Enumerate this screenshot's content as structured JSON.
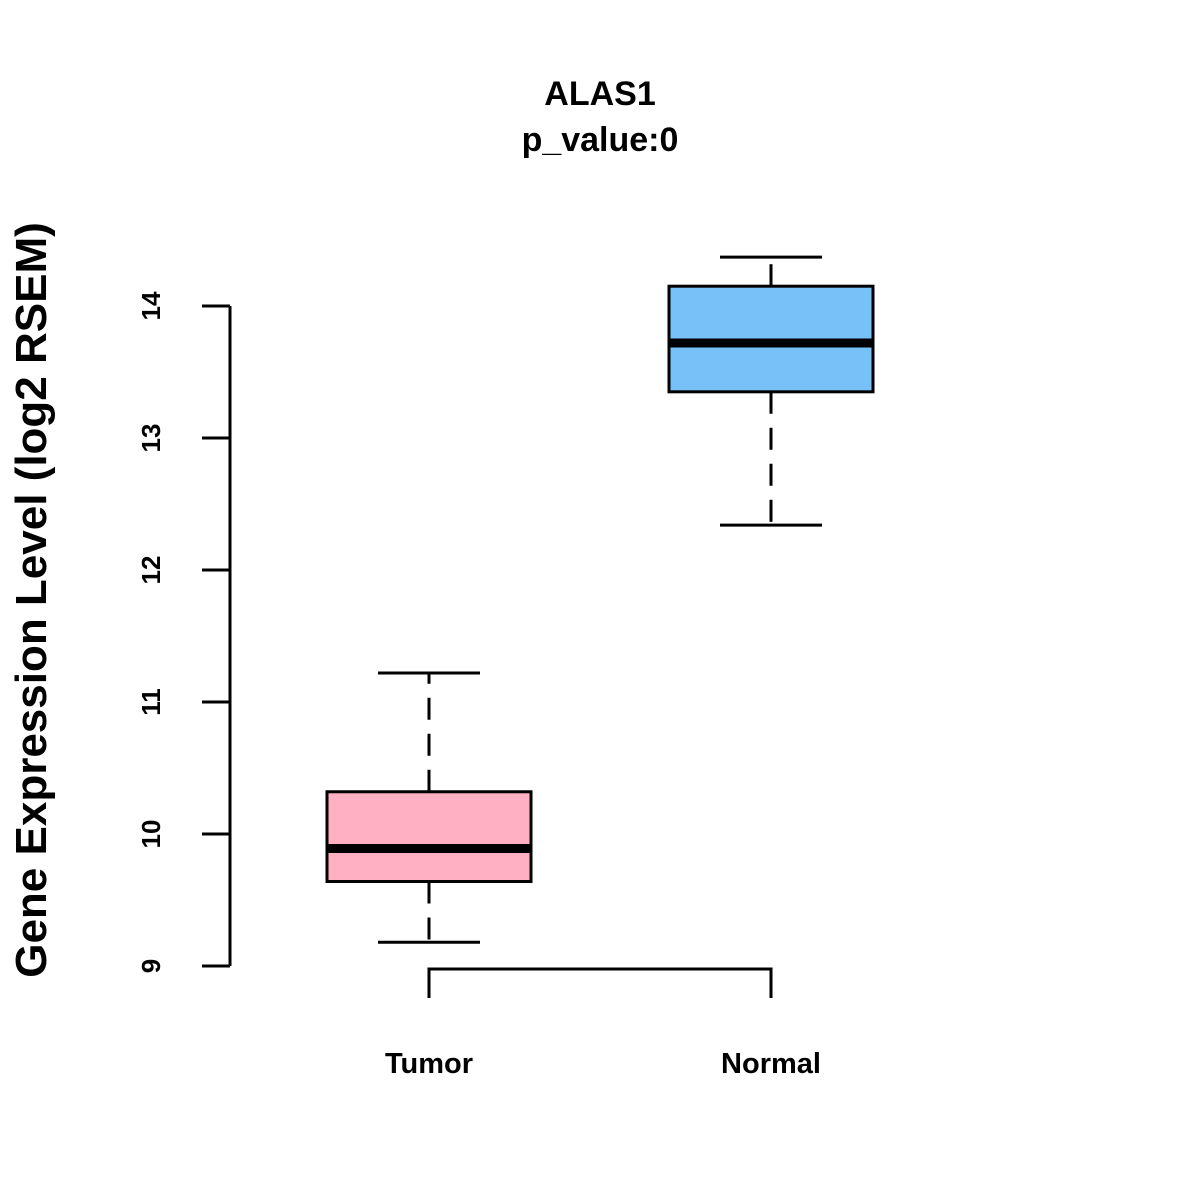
{
  "chart_data": {
    "type": "boxplot",
    "title": "ALAS1",
    "subtitle": "p_value:0",
    "ylabel": "Gene Expression Level (log2 RSEM)",
    "xlabel": "",
    "ylim": [
      9,
      14
    ],
    "yticks": [
      "9",
      "10",
      "11",
      "12",
      "13",
      "14"
    ],
    "grid": false,
    "categories": [
      "Tumor",
      "Normal"
    ],
    "boxes": [
      {
        "category": "Tumor",
        "color": "#FFB0C2",
        "whisker_low": 9.18,
        "q1": 9.64,
        "median": 9.89,
        "q3": 10.32,
        "whisker_high": 11.22
      },
      {
        "category": "Normal",
        "color": "#77C1F8",
        "whisker_low": 12.34,
        "q1": 13.35,
        "median": 13.72,
        "q3": 14.15,
        "whisker_high": 14.37
      }
    ],
    "comparison_bracket": {
      "from": "Tumor",
      "to": "Normal"
    }
  }
}
